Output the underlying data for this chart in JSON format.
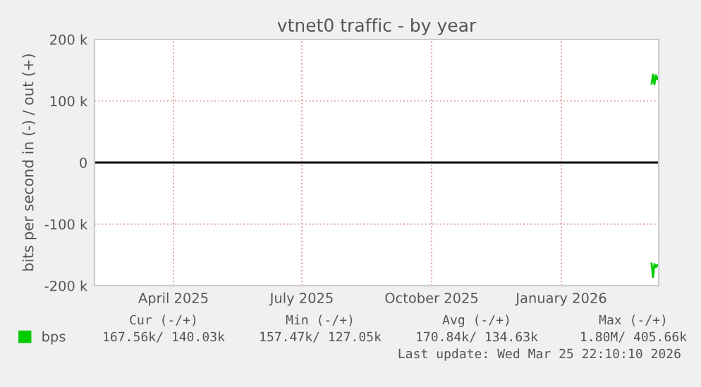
{
  "chart_data": {
    "type": "line",
    "title": "vtnet0 traffic - by year",
    "ylabel": "bits per second in (-) / out (+)",
    "series": [
      {
        "name": "bps",
        "color": "#00cc00",
        "x": [
          "2026-03-20",
          "2026-03-21",
          "2026-03-22",
          "2026-03-23",
          "2026-03-24",
          "2026-03-25"
        ],
        "values": [
          -164000,
          -186000,
          -165000,
          -170000,
          -166000,
          -168000
        ]
      },
      {
        "color": "#00cc00",
        "x": [
          "2026-03-20",
          "2026-03-21",
          "2026-03-22",
          "2026-03-23",
          "2026-03-24",
          "2026-03-25"
        ],
        "values": [
          128000,
          143000,
          127000,
          142000,
          135000,
          140000
        ]
      }
    ],
    "xlim": [
      "2025-02-18",
      "2026-03-25"
    ],
    "xticks": [
      {
        "value": "2025-04-15",
        "label": "April 2025"
      },
      {
        "value": "2025-07-15",
        "label": "July 2025"
      },
      {
        "value": "2025-10-15",
        "label": "October 2025"
      },
      {
        "value": "2026-01-15",
        "label": "January 2026"
      }
    ],
    "ylim": [
      -200000,
      200000
    ],
    "yticks": [
      {
        "value": -200000,
        "label": "-200 k"
      },
      {
        "value": -100000,
        "label": "-100 k"
      },
      0,
      {
        "value": 100000,
        "label": "100 k"
      },
      {
        "value": 200000,
        "label": "200 k"
      }
    ],
    "ref_lines": [
      {
        "axis": "y",
        "value": 0,
        "color": "#000000"
      }
    ],
    "grid": true,
    "legend": "bottom left",
    "marker": "none",
    "line_style": "solid",
    "annotations": [
      "Cur (-/+)",
      "Min (-/+)",
      "Avg (-/+)",
      "Max (-/+)",
      "167.56k/ 140.03k",
      "157.47k/ 127.05k",
      "170.84k/ 134.63k",
      "1.80M/ 405.66k",
      "Last update: Wed Mar 25 22:10:10 2026"
    ]
  }
}
